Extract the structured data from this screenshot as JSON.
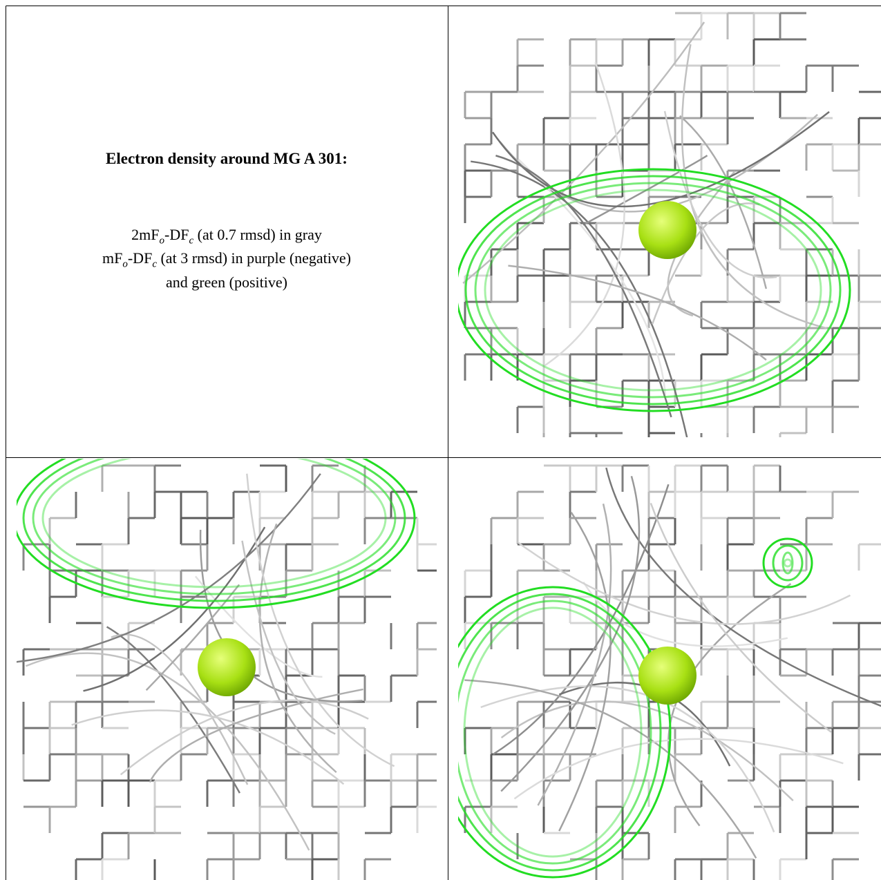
{
  "title": "Electron density around MG A 301:",
  "legend": [
    [
      "2mF",
      "o",
      "-DF",
      "c",
      " (at 0.7 rmsd) in gray"
    ],
    [
      "mF",
      "o",
      "-DF",
      "c",
      " (at 3 rmsd) in purple (negative)"
    ],
    [
      "and green (positive)"
    ]
  ]
}
